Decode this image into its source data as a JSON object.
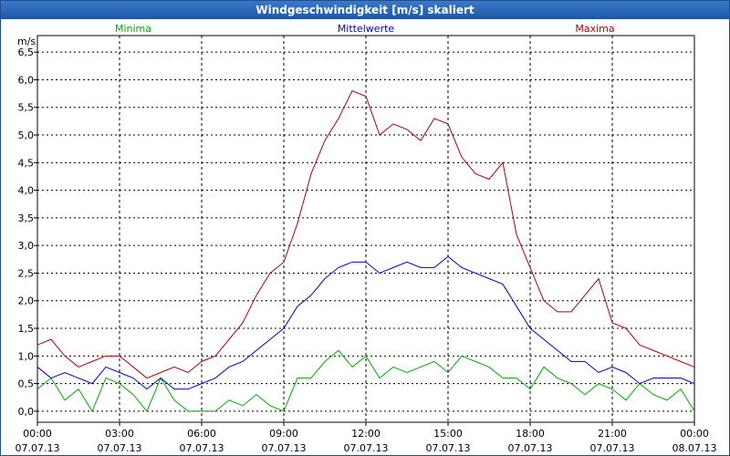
{
  "window": {
    "title": "Windgeschwindigkeit [m/s] skaliert"
  },
  "chart_data": {
    "type": "line",
    "title": "Windgeschwindigkeit [m/s] skaliert",
    "ylabel": "m/s",
    "xlabel": "",
    "ylim": [
      -0.2,
      6.8
    ],
    "xlim": [
      0,
      24
    ],
    "y_ticks": [
      "0,0",
      "0,5",
      "1,0",
      "1,5",
      "2,0",
      "2,5",
      "3,0",
      "3,5",
      "4,0",
      "4,5",
      "5,0",
      "5,5",
      "6,0",
      "6,5"
    ],
    "x_ticks": [
      {
        "time": "00:00",
        "date": "07.07.13"
      },
      {
        "time": "03:00",
        "date": "07.07.13"
      },
      {
        "time": "06:00",
        "date": "07.07.13"
      },
      {
        "time": "09:00",
        "date": "07.07.13"
      },
      {
        "time": "12:00",
        "date": "07.07.13"
      },
      {
        "time": "15:00",
        "date": "07.07.13"
      },
      {
        "time": "18:00",
        "date": "07.07.13"
      },
      {
        "time": "21:00",
        "date": "07.07.13"
      },
      {
        "time": "00:00",
        "date": "08.07.13"
      }
    ],
    "grid": true,
    "x_hours": [
      0,
      0.5,
      1,
      1.5,
      2,
      2.5,
      3,
      3.5,
      4,
      4.5,
      5,
      5.5,
      6,
      6.5,
      7,
      7.5,
      8,
      8.5,
      9,
      9.5,
      10,
      10.5,
      11,
      11.5,
      12,
      12.5,
      13,
      13.5,
      14,
      14.5,
      15,
      15.5,
      16,
      16.5,
      17,
      17.5,
      18,
      18.5,
      19,
      19.5,
      20,
      20.5,
      21,
      21.5,
      22,
      22.5,
      23,
      23.5,
      24
    ],
    "series": [
      {
        "name": "Minima",
        "color": "#00aa00",
        "values": [
          0.4,
          0.6,
          0.2,
          0.4,
          0.0,
          0.6,
          0.5,
          0.3,
          0.0,
          0.6,
          0.2,
          0.0,
          0.0,
          0.0,
          0.2,
          0.1,
          0.3,
          0.1,
          0.0,
          0.6,
          0.6,
          0.9,
          1.1,
          0.8,
          1.0,
          0.6,
          0.8,
          0.7,
          0.8,
          0.9,
          0.7,
          1.0,
          0.9,
          0.8,
          0.6,
          0.6,
          0.4,
          0.8,
          0.6,
          0.5,
          0.3,
          0.5,
          0.4,
          0.2,
          0.5,
          0.3,
          0.2,
          0.4,
          0.0
        ],
        "legend_position": "top-left"
      },
      {
        "name": "Mittelwerte",
        "color": "#0000cc",
        "values": [
          0.8,
          0.6,
          0.7,
          0.6,
          0.5,
          0.8,
          0.7,
          0.6,
          0.4,
          0.6,
          0.4,
          0.4,
          0.5,
          0.6,
          0.8,
          0.9,
          1.1,
          1.3,
          1.5,
          1.9,
          2.1,
          2.4,
          2.6,
          2.7,
          2.7,
          2.5,
          2.6,
          2.7,
          2.6,
          2.6,
          2.8,
          2.6,
          2.5,
          2.4,
          2.3,
          1.9,
          1.5,
          1.3,
          1.1,
          0.9,
          0.9,
          0.7,
          0.8,
          0.7,
          0.5,
          0.6,
          0.6,
          0.6,
          0.5
        ],
        "legend_position": "top-center"
      },
      {
        "name": "Maxima",
        "color": "#b00000",
        "values": [
          1.2,
          1.3,
          1.0,
          0.8,
          0.9,
          1.0,
          1.0,
          0.8,
          0.6,
          0.7,
          0.8,
          0.7,
          0.9,
          1.0,
          1.3,
          1.6,
          2.1,
          2.5,
          2.7,
          3.4,
          4.3,
          4.9,
          5.3,
          5.8,
          5.7,
          5.0,
          5.2,
          5.1,
          4.9,
          5.3,
          5.2,
          4.6,
          4.3,
          4.2,
          4.5,
          3.2,
          2.6,
          2.0,
          1.8,
          1.8,
          2.1,
          2.4,
          1.6,
          1.5,
          1.2,
          1.1,
          1.0,
          0.9,
          0.8
        ],
        "legend_position": "top-right"
      }
    ]
  }
}
